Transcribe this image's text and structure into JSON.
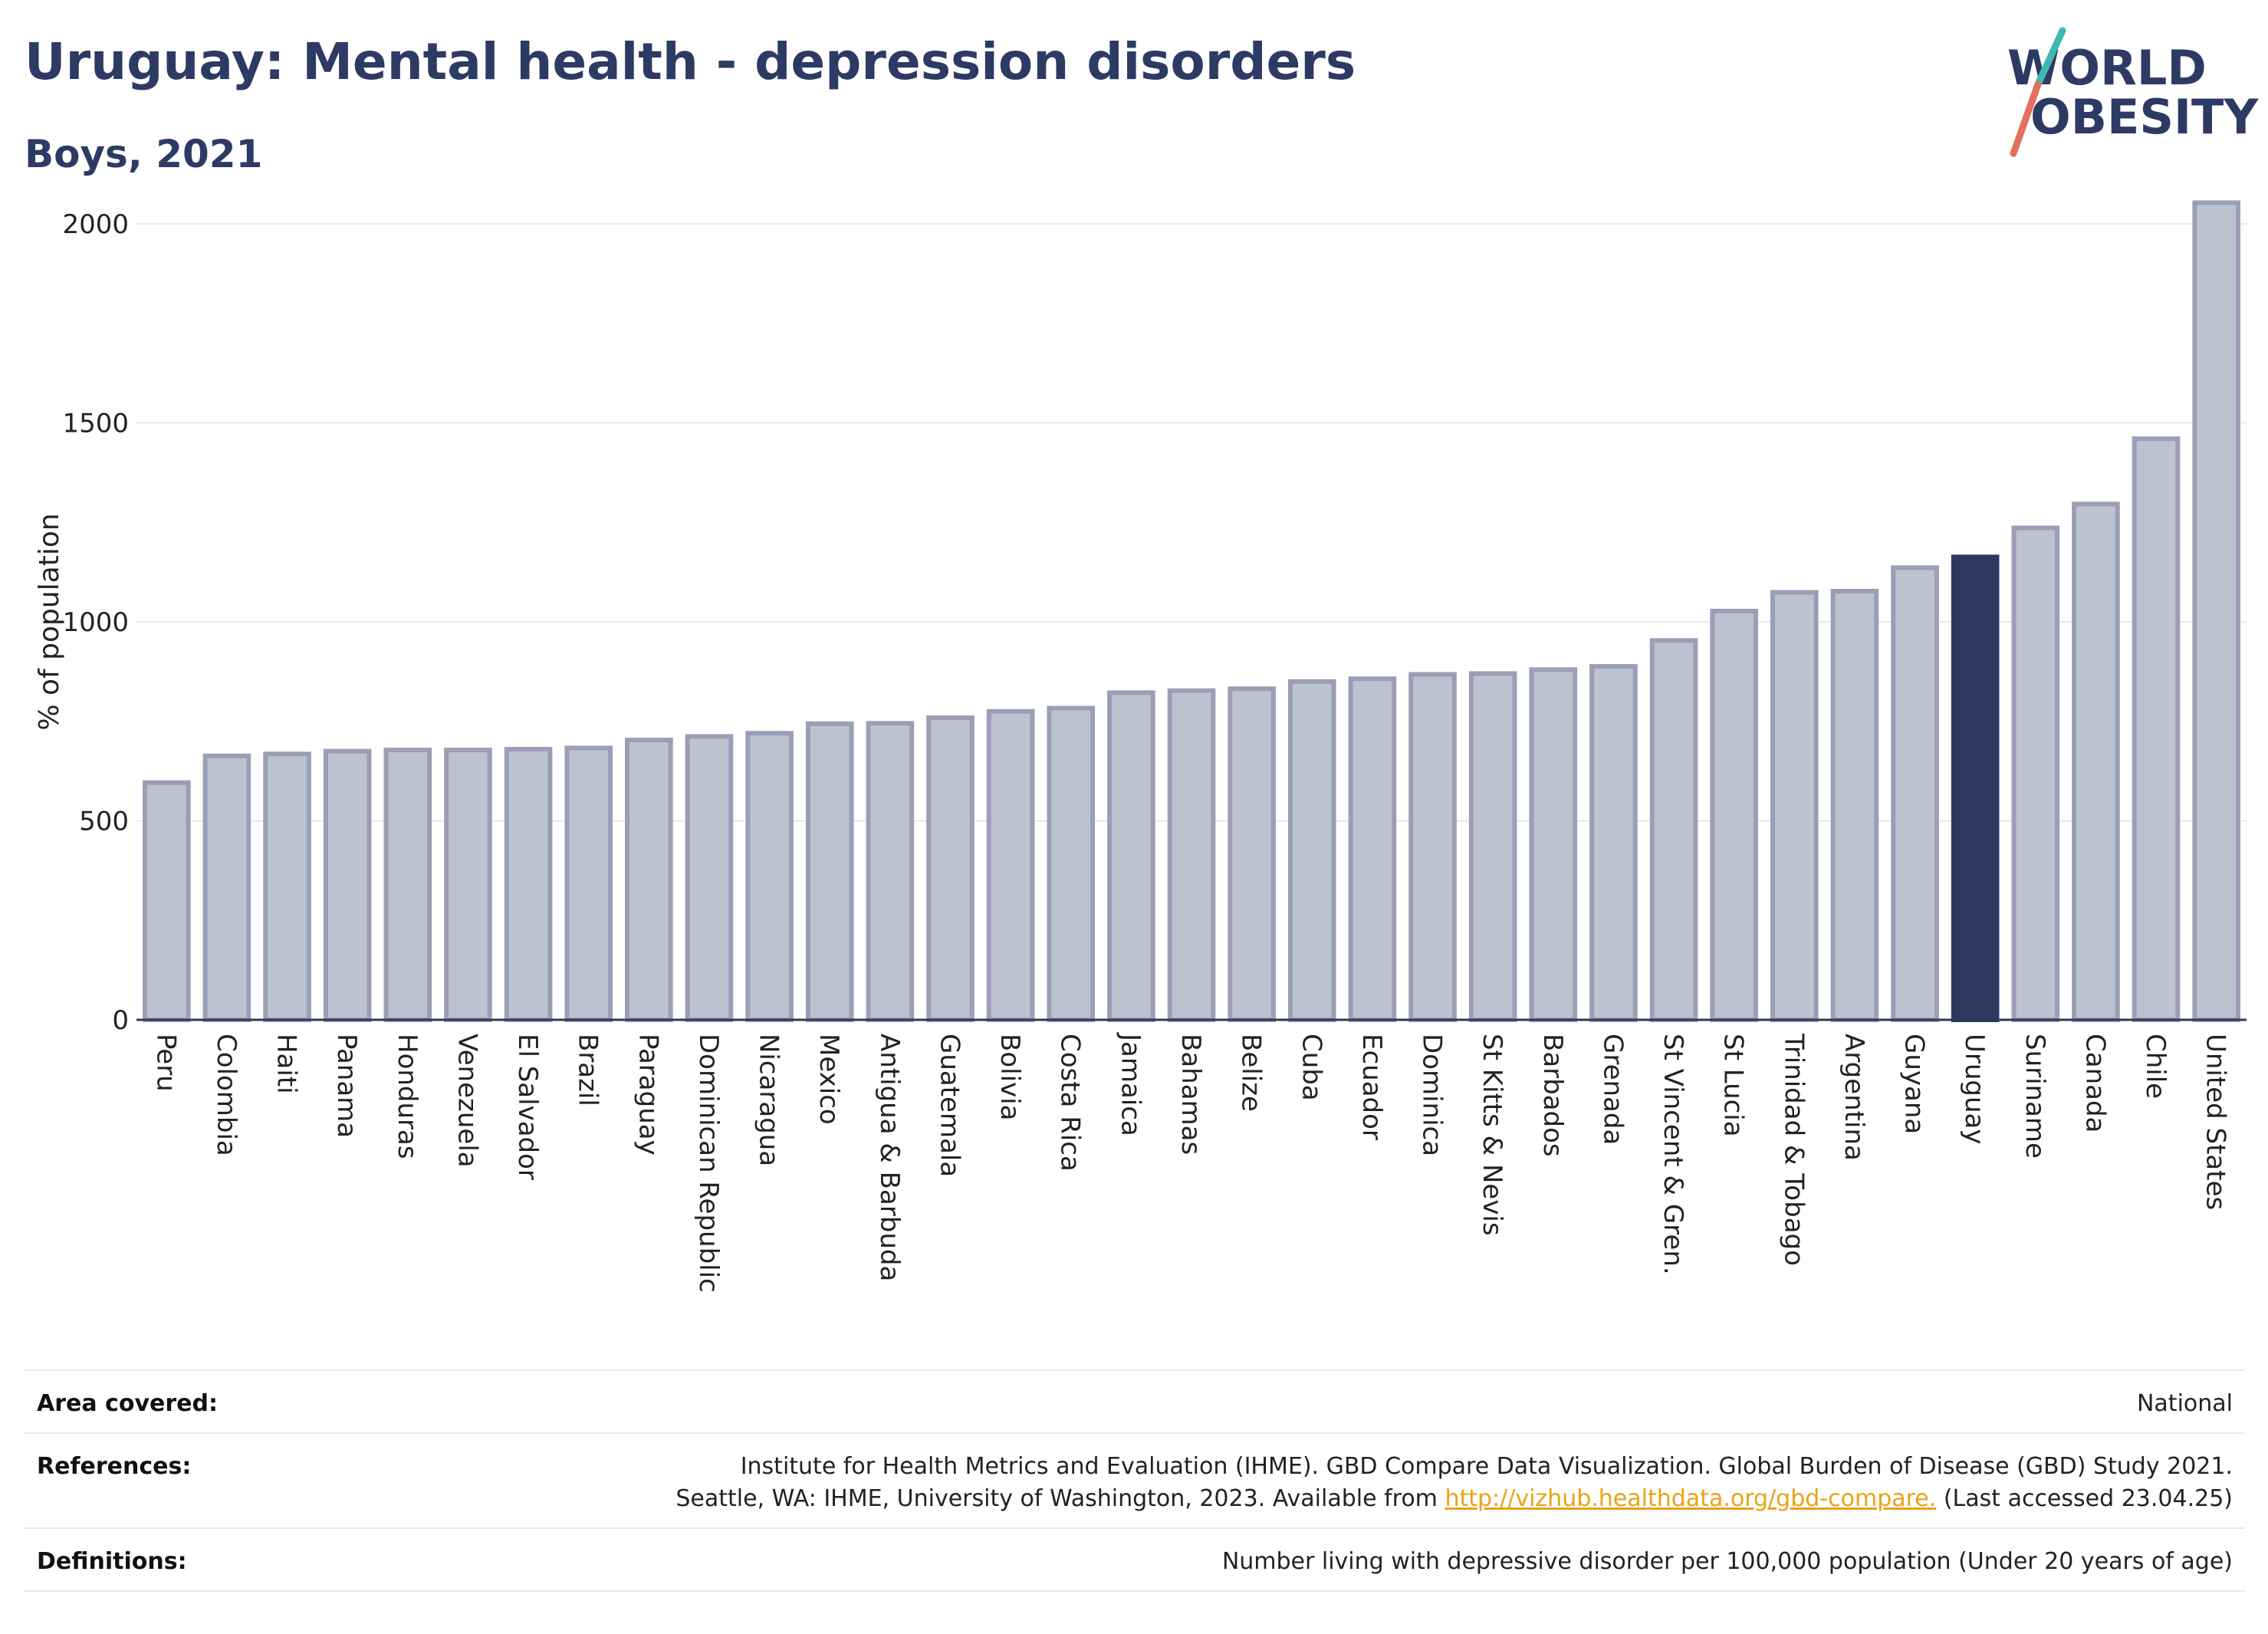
{
  "header": {
    "title": "Uruguay: Mental health - depression disorders",
    "subtitle": "Boys, 2021"
  },
  "logo": {
    "line1": "WORLD",
    "line2": "OBESITY"
  },
  "chart_data": {
    "type": "bar",
    "title": "Uruguay: Mental health - depression disorders",
    "subtitle": "Boys, 2021",
    "xlabel": "",
    "ylabel": "% of population",
    "ylim": [
      0,
      2100
    ],
    "yticks": [
      0,
      500,
      1000,
      1500,
      2000
    ],
    "grid": true,
    "highlight": "Uruguay",
    "colors": {
      "bar": "#bec1cf",
      "bar_edge": "#9a9fb6",
      "highlight": "#2d3760",
      "grid": "#e8e8e8",
      "axis": "#2d3760"
    },
    "categories": [
      "Peru",
      "Colombia",
      "Haiti",
      "Panama",
      "Honduras",
      "Venezuela",
      "El Salvador",
      "Brazil",
      "Paraguay",
      "Dominican Republic",
      "Nicaragua",
      "Mexico",
      "Antigua & Barbuda",
      "Guatemala",
      "Bolivia",
      "Costa Rica",
      "Jamaica",
      "Bahamas",
      "Belize",
      "Cuba",
      "Ecuador",
      "Dominica",
      "St Kitts & Nevis",
      "Barbados",
      "Grenada",
      "St Vincent & Gren.",
      "St Lucia",
      "Trinidad & Tobago",
      "Argentina",
      "Guyana",
      "Uruguay",
      "Suriname",
      "Canada",
      "Chile",
      "United States"
    ],
    "values": [
      596,
      663,
      668,
      675,
      678,
      678,
      680,
      683,
      703,
      712,
      720,
      744,
      745,
      759,
      775,
      783,
      822,
      827,
      832,
      850,
      857,
      868,
      870,
      880,
      888,
      953,
      1027,
      1074,
      1077,
      1136,
      1163,
      1236,
      1296,
      1460,
      2053
    ]
  },
  "info": {
    "area_label": "Area covered:",
    "area_value": "National",
    "references_label": "References:",
    "references_line1": "Institute for Health Metrics and Evaluation (IHME). GBD Compare Data Visualization. Global Burden of Disease (GBD) Study 2021.",
    "references_line2_pre": "Seattle, WA: IHME, University of Washington, 2023. Available from ",
    "references_link": "http://vizhub.healthdata.org/gbd-compare.",
    "references_line2_post": " (Last accessed 23.04.25)",
    "definitions_label": "Definitions:",
    "definitions_value": "Number living with depressive disorder per 100,000 population (Under 20 years of age)"
  }
}
